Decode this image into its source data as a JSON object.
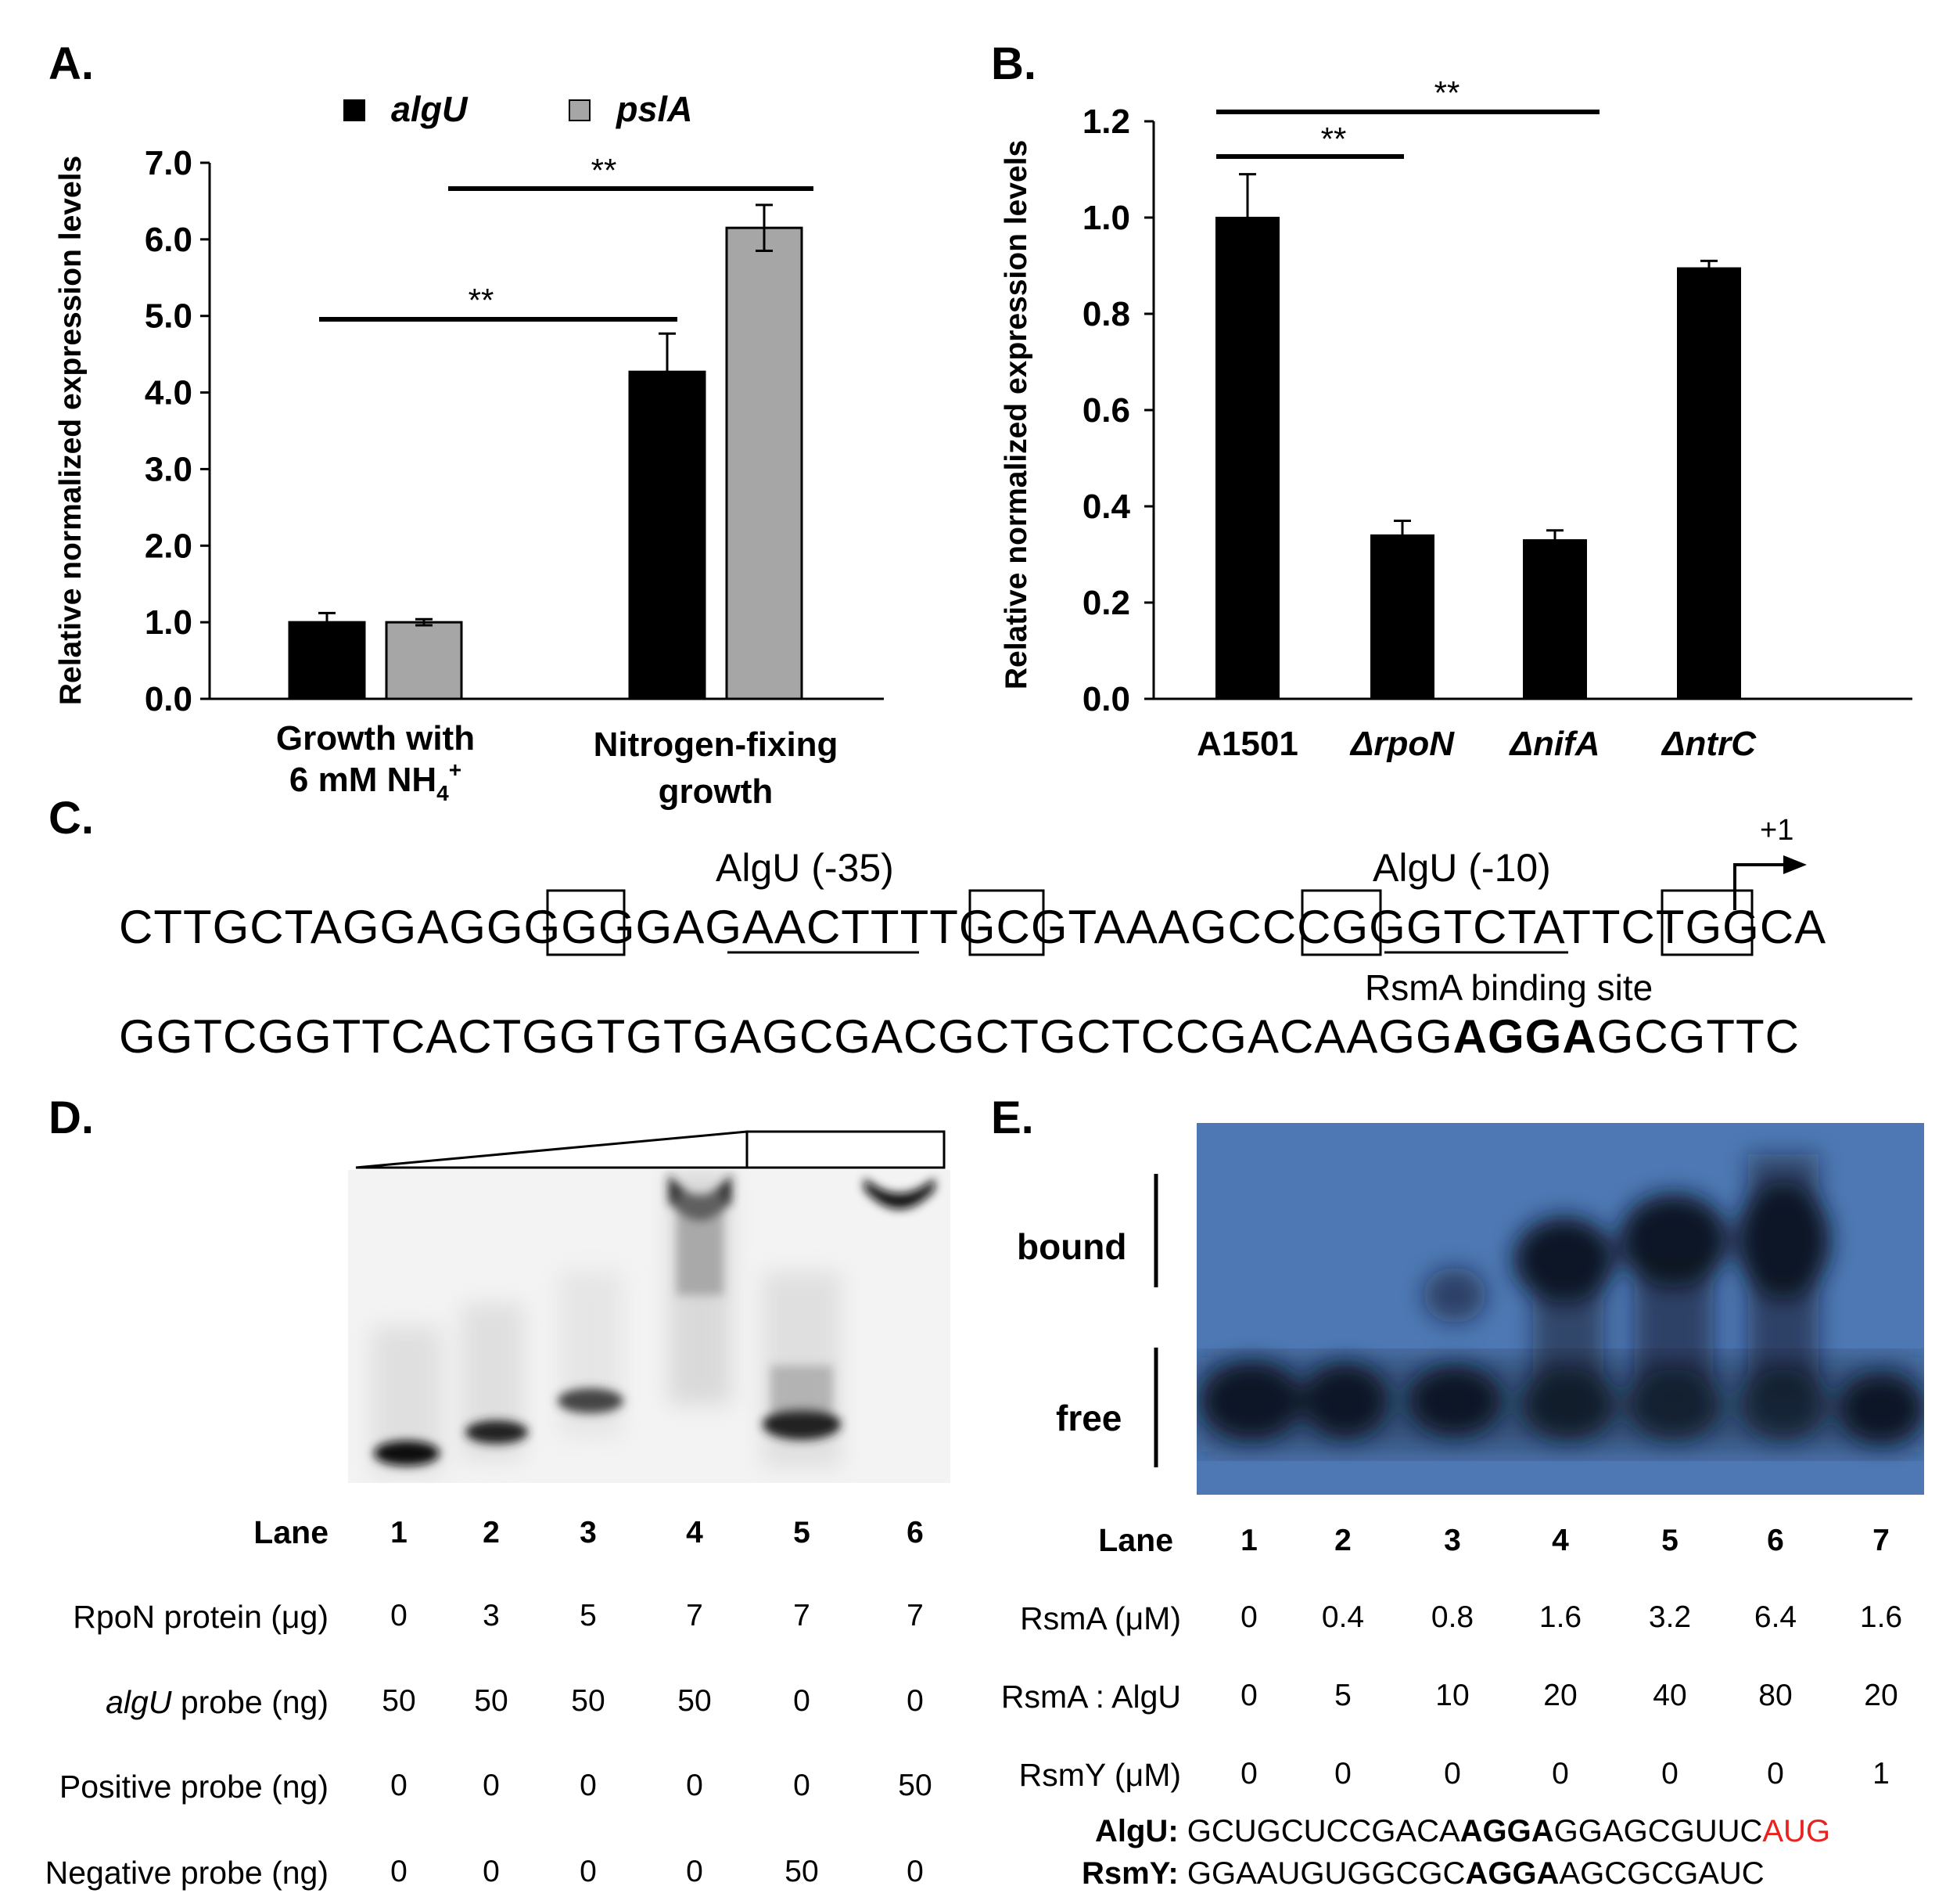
{
  "panels": {
    "a": "A.",
    "b": "B.",
    "c": "C.",
    "d": "D.",
    "e": "E."
  },
  "panel_a": {
    "chart_data": {
      "type": "bar",
      "ylabel": "Relative normalized expression levels",
      "ylim": [
        0,
        7
      ],
      "yticks": [
        "0.0",
        "1.0",
        "2.0",
        "3.0",
        "4.0",
        "5.0",
        "6.0",
        "7.0"
      ],
      "categories": [
        "Growth with 6 mM NH4+",
        "Nitrogen-fixing growth"
      ],
      "category_lines": [
        [
          "Growth with",
          "6 mM NH4+"
        ],
        [
          "Nitrogen-fixing",
          "growth"
        ]
      ],
      "series": [
        {
          "name": "algU",
          "color": "#000000",
          "values": [
            1.0,
            4.27
          ],
          "errors": [
            0.12,
            0.5
          ]
        },
        {
          "name": "pslA",
          "color": "#a6a6a6",
          "values": [
            1.0,
            6.15
          ],
          "errors": [
            0.04,
            0.3
          ]
        }
      ],
      "significance": [
        "**",
        "**"
      ]
    }
  },
  "panel_b": {
    "chart_data": {
      "type": "bar",
      "ylabel": "Relative normalized expression levels",
      "ylim": [
        0,
        1.2
      ],
      "yticks": [
        "0.0",
        "0.2",
        "0.4",
        "0.6",
        "0.8",
        "1.0",
        "1.2"
      ],
      "categories": [
        "A1501",
        "ΔrpoN",
        "ΔnifA",
        "ΔntrC"
      ],
      "series": [
        {
          "name": "",
          "color": "#000000",
          "values": [
            1.0,
            0.34,
            0.33,
            0.895
          ],
          "errors": [
            0.09,
            0.03,
            0.02,
            0.015
          ]
        }
      ],
      "significance": [
        "**",
        "**"
      ]
    }
  },
  "panel_c": {
    "label_35": "AlgU (-35)",
    "label_10": "AlgU (-10)",
    "plus_one": "+1",
    "rsma_site": "RsmA binding site",
    "line1": "CTTGCTAGGAGGGGGGAGAACTTTTGCGTAAAGCCCGGGTCTATTCTGGCA",
    "line2_pre": "GGTCGGTTCACTGGTGTGAGCGACGCTGCTCCGACAAGG",
    "line2_bold": "AGGA",
    "line2_post": "GCGTTC"
  },
  "panel_d": {
    "lane_label": "Lane",
    "lanes": [
      "1",
      "2",
      "3",
      "4",
      "5",
      "6"
    ],
    "rows": [
      {
        "label": "RpoN protein (μg)",
        "values": [
          "0",
          "3",
          "5",
          "7",
          "7",
          "7"
        ]
      },
      {
        "label_italic": "algU",
        "label": " probe  (ng)",
        "values": [
          "50",
          "50",
          "50",
          "50",
          "0",
          "0"
        ]
      },
      {
        "label": "Positive probe  (ng)",
        "values": [
          "0",
          "0",
          "0",
          "0",
          "0",
          "50"
        ]
      },
      {
        "label": "Negative probe (ng)",
        "values": [
          "0",
          "0",
          "0",
          "0",
          "50",
          "0"
        ]
      }
    ]
  },
  "panel_e": {
    "bound": "bound",
    "free": "free",
    "lane_label": "Lane",
    "lanes": [
      "1",
      "2",
      "3",
      "4",
      "5",
      "6",
      "7"
    ],
    "rows": [
      {
        "label": "RsmA (μM)",
        "values": [
          "0",
          "0.4",
          "0.8",
          "1.6",
          "3.2",
          "6.4",
          "1.6"
        ]
      },
      {
        "label": "RsmA : AlgU",
        "values": [
          "0",
          "5",
          "10",
          "20",
          "40",
          "80",
          "20"
        ]
      },
      {
        "label": "RsmY (μM)",
        "values": [
          "0",
          "0",
          "0",
          "0",
          "0",
          "0",
          "1"
        ]
      }
    ],
    "algu_label": "AlgU:",
    "algu_pre": " GCUGCUCCGACA",
    "algu_bold": "AGGA",
    "algu_mid": "GGAGCGUUC",
    "algu_red": "AUG",
    "rsmy_label": "RsmY:",
    "rsmy_pre": " GGAAUGUGGCGC",
    "rsmy_bold": "AGGA",
    "rsmy_post": "AGCGCGAUC",
    "red_color": "#e8231f"
  }
}
